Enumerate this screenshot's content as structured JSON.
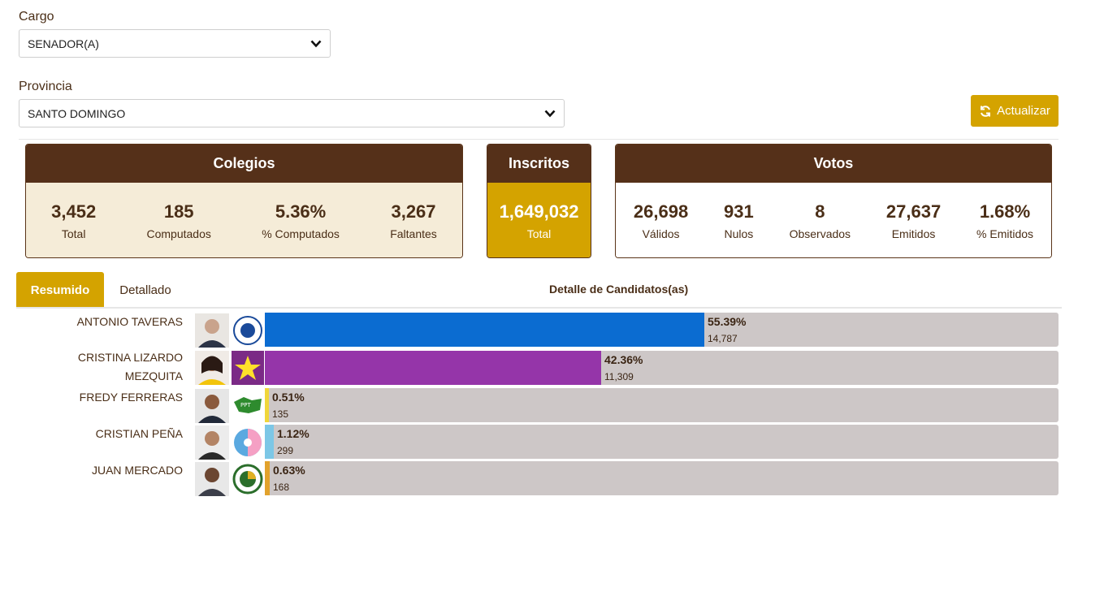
{
  "filters": {
    "cargo_label": "Cargo",
    "cargo_value": "SENADOR(A)",
    "provincia_label": "Provincia",
    "provincia_value": "SANTO DOMINGO",
    "update_label": "Actualizar"
  },
  "colegios": {
    "title": "Colegios",
    "stats": [
      {
        "value": "3,452",
        "label": "Total"
      },
      {
        "value": "185",
        "label": "Computados"
      },
      {
        "value": "5.36%",
        "label": "% Computados"
      },
      {
        "value": "3,267",
        "label": "Faltantes"
      }
    ]
  },
  "inscritos": {
    "title": "Inscritos",
    "value": "1,649,032",
    "label": "Total"
  },
  "votos": {
    "title": "Votos",
    "stats": [
      {
        "value": "26,698",
        "label": "Válidos"
      },
      {
        "value": "931",
        "label": "Nulos"
      },
      {
        "value": "8",
        "label": "Observados"
      },
      {
        "value": "27,637",
        "label": "Emitidos"
      },
      {
        "value": "1.68%",
        "label": "% Emitidos"
      }
    ]
  },
  "tabs": {
    "active": "Resumido",
    "other": "Detallado",
    "section_title": "Detalle de Candidatos(as)"
  },
  "candidates": [
    {
      "name": "ANTONIO TAVERAS",
      "percent": "55.39%",
      "share": 55.39,
      "votes": "14,787",
      "color": "#0b6cd1"
    },
    {
      "name": "CRISTINA LIZARDO MEZQUITA",
      "percent": "42.36%",
      "share": 42.36,
      "votes": "11,309",
      "color": "#9535a9"
    },
    {
      "name": "FREDY FERRERAS",
      "percent": "0.51%",
      "share": 0.51,
      "votes": "135",
      "color": "#f0d63a"
    },
    {
      "name": "CRISTIAN PEÑA",
      "percent": "1.12%",
      "share": 1.12,
      "votes": "299",
      "color": "#7cc7e6"
    },
    {
      "name": "JUAN MERCADO",
      "percent": "0.63%",
      "share": 0.63,
      "votes": "168",
      "color": "#e2a22c"
    }
  ],
  "colors": {
    "brown": "#553019",
    "gold": "#d4a300",
    "cream": "#f5ecd8",
    "track": "#cdc7c7"
  }
}
